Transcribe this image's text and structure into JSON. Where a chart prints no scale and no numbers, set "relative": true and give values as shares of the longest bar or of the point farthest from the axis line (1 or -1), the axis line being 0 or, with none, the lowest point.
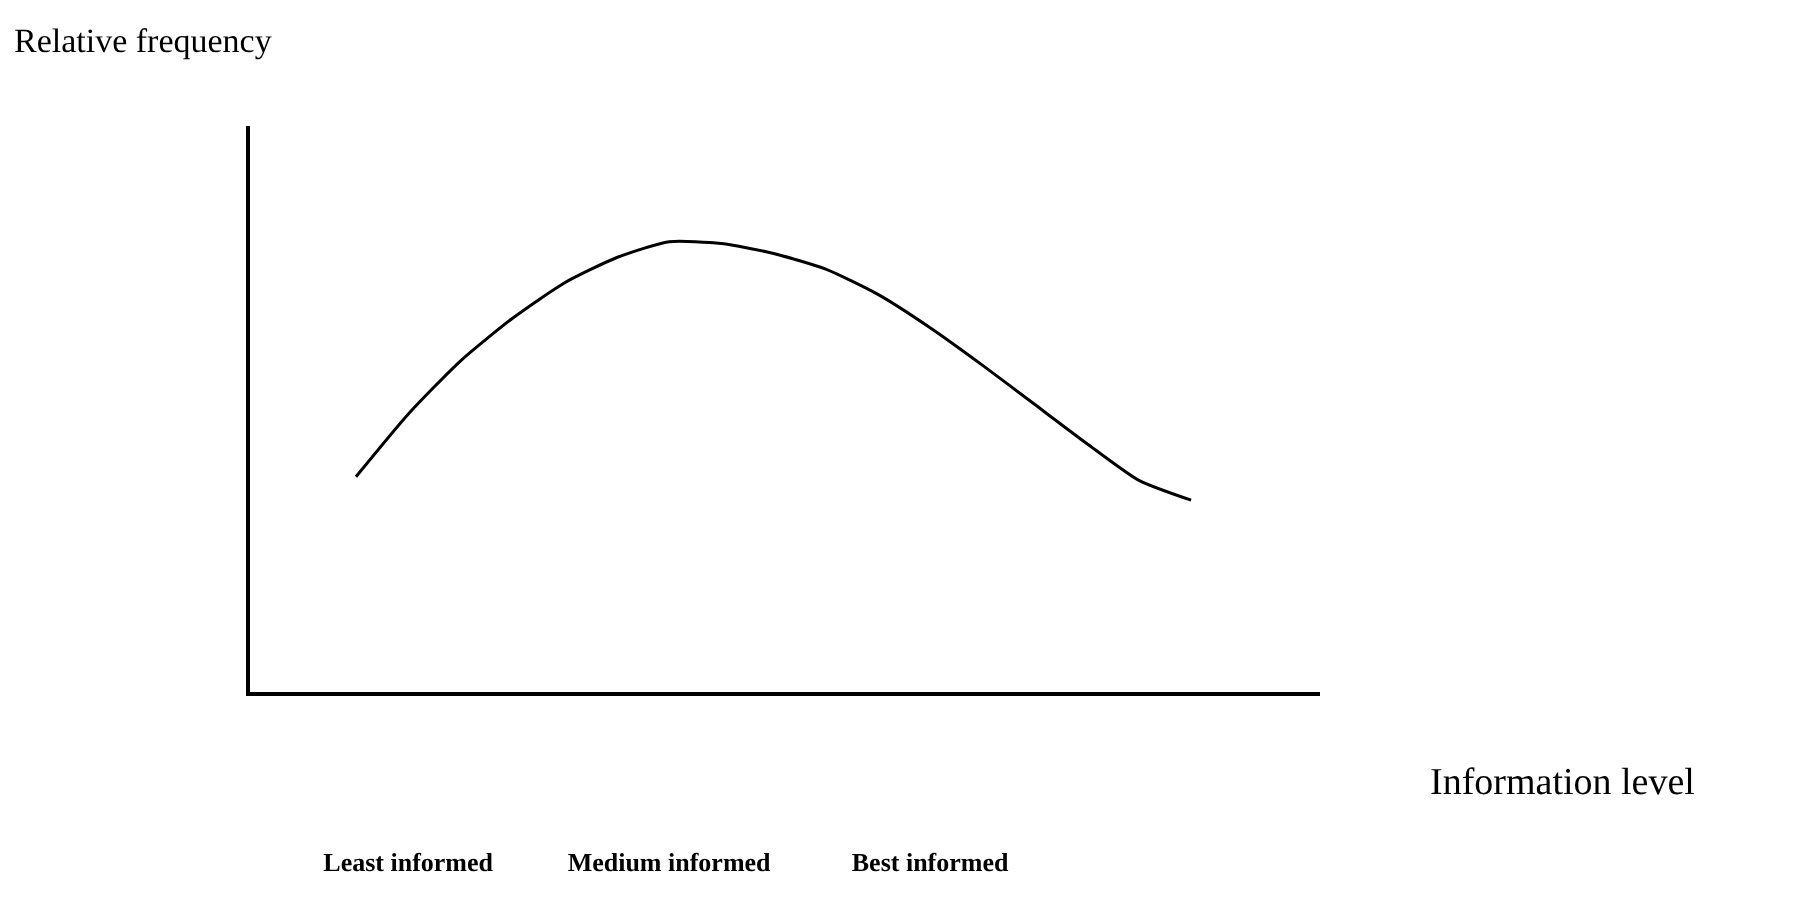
{
  "chart_data": {
    "type": "line",
    "relative": true,
    "annotations": [
      "Relative frequency",
      "Information level"
    ],
    "categories": [
      null,
      "Least informed",
      null,
      null,
      null,
      null,
      "Medium informed",
      null,
      null,
      null,
      null,
      "Best informed",
      null,
      null,
      null,
      null,
      null
    ],
    "series": [
      {
        "color": "#000000",
        "values": [
          0.478,
          0.617,
          0.735,
          0.83,
          0.909,
          0.965,
          1,
          0.996,
          0.974,
          0.939,
          0.883,
          0.809,
          0.726,
          0.639,
          0.552,
          0.47,
          0.426
        ]
      }
    ]
  }
}
